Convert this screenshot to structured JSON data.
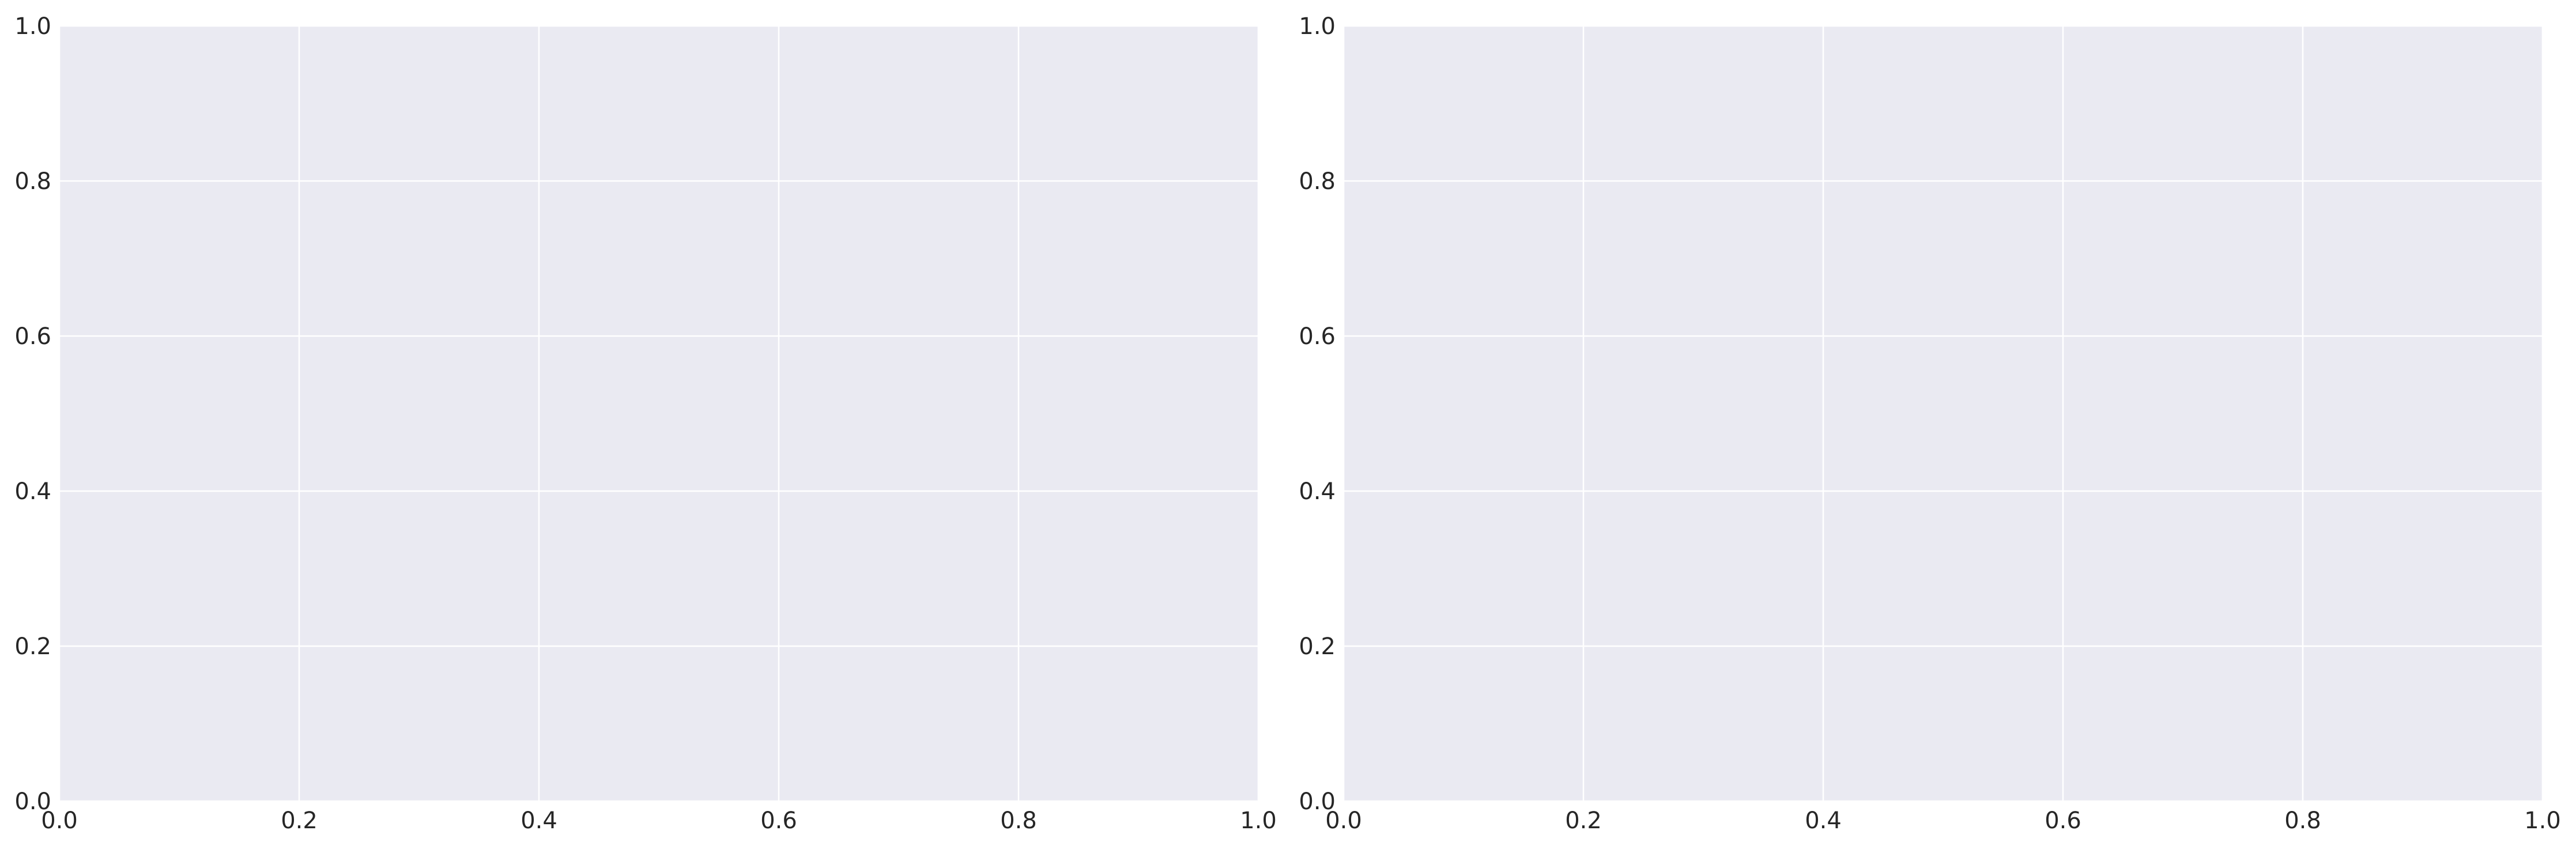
{
  "chart_data": [
    {
      "type": "scatter",
      "title": "",
      "xlabel": "",
      "ylabel": "",
      "xlim": [
        0.0,
        1.0
      ],
      "ylim": [
        0.0,
        1.0
      ],
      "x_ticks": [
        "0.0",
        "0.2",
        "0.4",
        "0.6",
        "0.8",
        "1.0"
      ],
      "y_ticks": [
        "0.0",
        "0.2",
        "0.4",
        "0.6",
        "0.8",
        "1.0"
      ],
      "grid": true,
      "series": []
    },
    {
      "type": "scatter",
      "title": "",
      "xlabel": "",
      "ylabel": "",
      "xlim": [
        0.0,
        1.0
      ],
      "ylim": [
        0.0,
        1.0
      ],
      "x_ticks": [
        "0.0",
        "0.2",
        "0.4",
        "0.6",
        "0.8",
        "1.0"
      ],
      "y_ticks": [
        "0.0",
        "0.2",
        "0.4",
        "0.6",
        "0.8",
        "1.0"
      ],
      "grid": true,
      "series": []
    }
  ],
  "colors": {
    "plot_background": "#eaeaf2",
    "grid": "#ffffff",
    "tick_label": "#262626",
    "figure_background": "#ffffff"
  }
}
